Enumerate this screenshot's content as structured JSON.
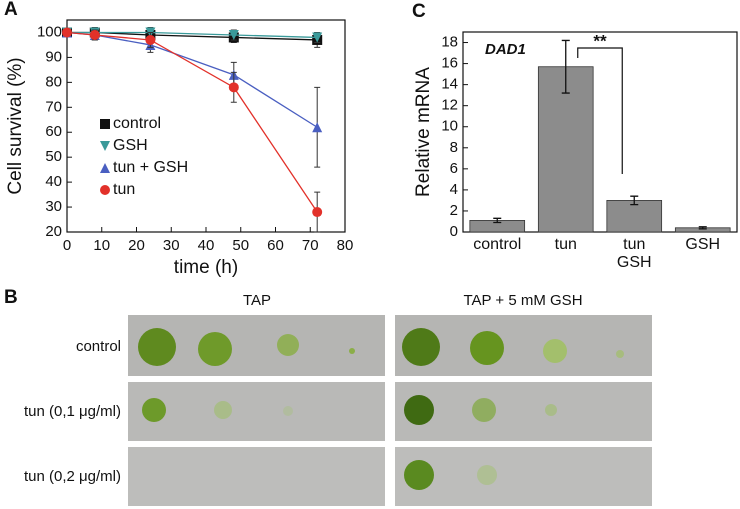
{
  "chart_data": [
    {
      "type": "line",
      "label": "A",
      "xlabel": "time (h)",
      "ylabel": "Cell survival (%)",
      "x": [
        0,
        8,
        24,
        48,
        72
      ],
      "series": [
        {
          "name": "control",
          "color": "#111111",
          "marker": "square",
          "values": [
            100,
            100,
            99,
            98,
            97
          ],
          "errors": [
            1,
            2,
            2,
            2,
            3
          ]
        },
        {
          "name": "GSH",
          "color": "#3a9a9a",
          "marker": "triangle-down",
          "values": [
            100,
            100,
            100,
            99,
            98
          ],
          "errors": [
            1,
            2,
            2,
            2,
            2
          ]
        },
        {
          "name": "tun + GSH",
          "color": "#4a5fc1",
          "marker": "triangle-up",
          "values": [
            100,
            99,
            95,
            83,
            62
          ],
          "errors": [
            1,
            2,
            3,
            5,
            16
          ]
        },
        {
          "name": "tun",
          "color": "#e2312a",
          "marker": "circle",
          "values": [
            100,
            99,
            97,
            78,
            28
          ],
          "errors": [
            1,
            2,
            3,
            6,
            8
          ]
        }
      ],
      "xlim": [
        0,
        80
      ],
      "xticks": [
        0,
        10,
        20,
        30,
        40,
        50,
        60,
        70,
        80
      ],
      "ylim": [
        20,
        105
      ],
      "yticks": [
        20,
        30,
        40,
        50,
        60,
        70,
        80,
        90,
        100
      ],
      "legend": "left"
    },
    {
      "type": "bar",
      "label": "C",
      "ylabel": "Relative mRNA",
      "categories": [
        "control",
        "tun",
        "tun\nGSH",
        "GSH"
      ],
      "values": [
        1.1,
        15.7,
        3.0,
        0.4
      ],
      "errors": [
        0.2,
        2.5,
        0.4,
        0.1
      ],
      "color": "#8c8c8c",
      "ylim": [
        0,
        19
      ],
      "yticks": [
        0,
        2,
        4,
        6,
        8,
        10,
        12,
        14,
        16,
        18
      ],
      "annotations": [
        "DAD1",
        "**"
      ]
    }
  ],
  "plates": {
    "label": "B",
    "columns": [
      "TAP",
      "TAP + 5 mM GSH"
    ],
    "rows": [
      "control",
      "tun (0,1 μg/ml)",
      "tun (0,2 μg/ml)"
    ]
  }
}
